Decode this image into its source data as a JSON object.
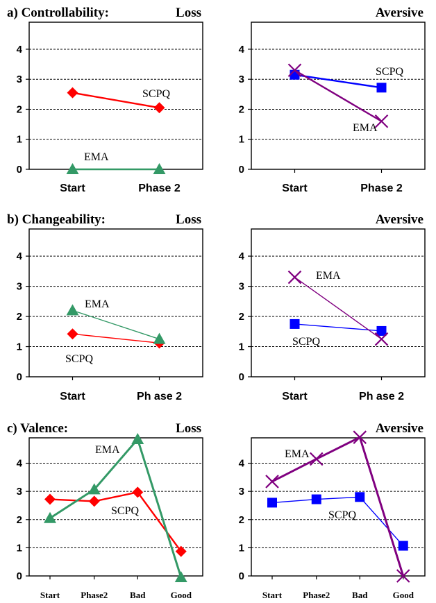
{
  "panels": [
    {
      "section": "a) Controllability:",
      "charts": [
        {
          "condition": "Loss",
          "type": "line",
          "categories": [
            "Start",
            "Phase 2"
          ],
          "ylim": [
            0,
            4.9
          ],
          "yticks": [
            0,
            1,
            2,
            3,
            4
          ],
          "series": [
            {
              "name": "SCPQ",
              "color": "#ff0000",
              "marker": "diamond",
              "values": [
                2.55,
                2.05
              ]
            },
            {
              "name": "EMA",
              "color": "#339966",
              "marker": "triangle",
              "values": [
                0.0,
                0.0
              ]
            }
          ]
        },
        {
          "condition": "Aversive",
          "type": "line",
          "categories": [
            "Start",
            "Phase 2"
          ],
          "ylim": [
            0,
            4.9
          ],
          "yticks": [
            0,
            1,
            2,
            3,
            4
          ],
          "series": [
            {
              "name": "SCPQ",
              "color": "#0000ff",
              "marker": "square",
              "values": [
                3.15,
                2.72
              ]
            },
            {
              "name": "EMA",
              "color": "#800080",
              "marker": "x",
              "values": [
                3.3,
                1.6
              ]
            }
          ]
        }
      ]
    },
    {
      "section": "b) Changeability:",
      "charts": [
        {
          "condition": "Loss",
          "type": "line",
          "categories": [
            "Start",
            "Ph ase 2"
          ],
          "ylim": [
            0,
            4.9
          ],
          "yticks": [
            0,
            1,
            2,
            3,
            4
          ],
          "series": [
            {
              "name": "SCPQ",
              "color": "#ff0000",
              "marker": "diamond",
              "values": [
                1.42,
                1.12
              ]
            },
            {
              "name": "EMA",
              "color": "#339966",
              "marker": "triangle",
              "values": [
                2.2,
                1.25
              ]
            }
          ]
        },
        {
          "condition": "Aversive",
          "type": "line",
          "categories": [
            "Start",
            "Ph ase 2"
          ],
          "ylim": [
            0,
            4.9
          ],
          "yticks": [
            0,
            1,
            2,
            3,
            4
          ],
          "series": [
            {
              "name": "SCPQ",
              "color": "#0000ff",
              "marker": "square",
              "values": [
                1.75,
                1.52
              ]
            },
            {
              "name": "EMA",
              "color": "#800080",
              "marker": "x",
              "values": [
                3.3,
                1.25
              ]
            }
          ]
        }
      ]
    },
    {
      "section": "c) Valence:",
      "charts": [
        {
          "condition": "Loss",
          "type": "line",
          "categories": [
            "Start",
            "Phase2",
            "Bad",
            "Good"
          ],
          "ylim": [
            0,
            4.9
          ],
          "yticks": [
            0,
            1,
            2,
            3,
            4
          ],
          "series": [
            {
              "name": "SCPQ",
              "color": "#ff0000",
              "marker": "diamond",
              "values": [
                2.72,
                2.65,
                2.97,
                0.87
              ]
            },
            {
              "name": "EMA",
              "color": "#339966",
              "marker": "triangle",
              "values": [
                2.05,
                3.07,
                4.85,
                -0.05
              ]
            }
          ]
        },
        {
          "condition": "Aversive",
          "type": "line",
          "categories": [
            "Start",
            "Phase2",
            "Bad",
            "Good"
          ],
          "ylim": [
            0,
            4.9
          ],
          "yticks": [
            0,
            1,
            2,
            3,
            4
          ],
          "series": [
            {
              "name": "SCPQ",
              "color": "#0000ff",
              "marker": "square",
              "values": [
                2.6,
                2.72,
                2.8,
                1.07
              ]
            },
            {
              "name": "EMA",
              "color": "#800080",
              "marker": "x",
              "values": [
                3.35,
                4.15,
                4.92,
                0.0
              ]
            }
          ]
        }
      ]
    }
  ]
}
